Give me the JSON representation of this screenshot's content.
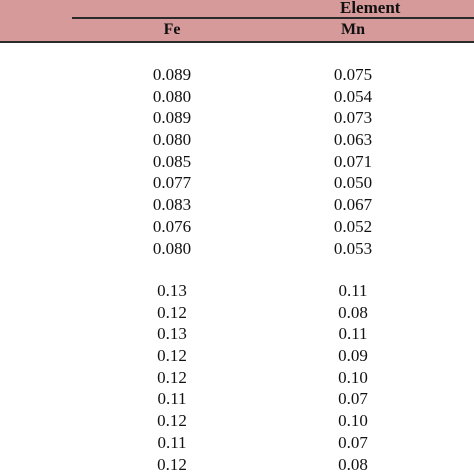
{
  "table": {
    "group_header": "Element",
    "columns": [
      "Fe",
      "Mn"
    ],
    "group1": {
      "Fe": [
        "0.089",
        "0.080",
        "0.089",
        "0.080",
        "0.085",
        "0.077",
        "0.083",
        "0.076",
        "0.080"
      ],
      "Mn": [
        "0.075",
        "0.054",
        "0.073",
        "0.063",
        "0.071",
        "0.050",
        "0.067",
        "0.052",
        "0.053"
      ]
    },
    "group2": {
      "Fe": [
        "0.13",
        "0.12",
        "0.13",
        "0.12",
        "0.12",
        "0.11",
        "0.12",
        "0.11",
        "0.12"
      ],
      "Mn": [
        "0.11",
        "0.08",
        "0.11",
        "0.09",
        "0.10",
        "0.07",
        "0.10",
        "0.07",
        "0.08"
      ]
    }
  },
  "colors": {
    "header_bg": "#d79a9a",
    "rule": "#2a2a2a"
  }
}
